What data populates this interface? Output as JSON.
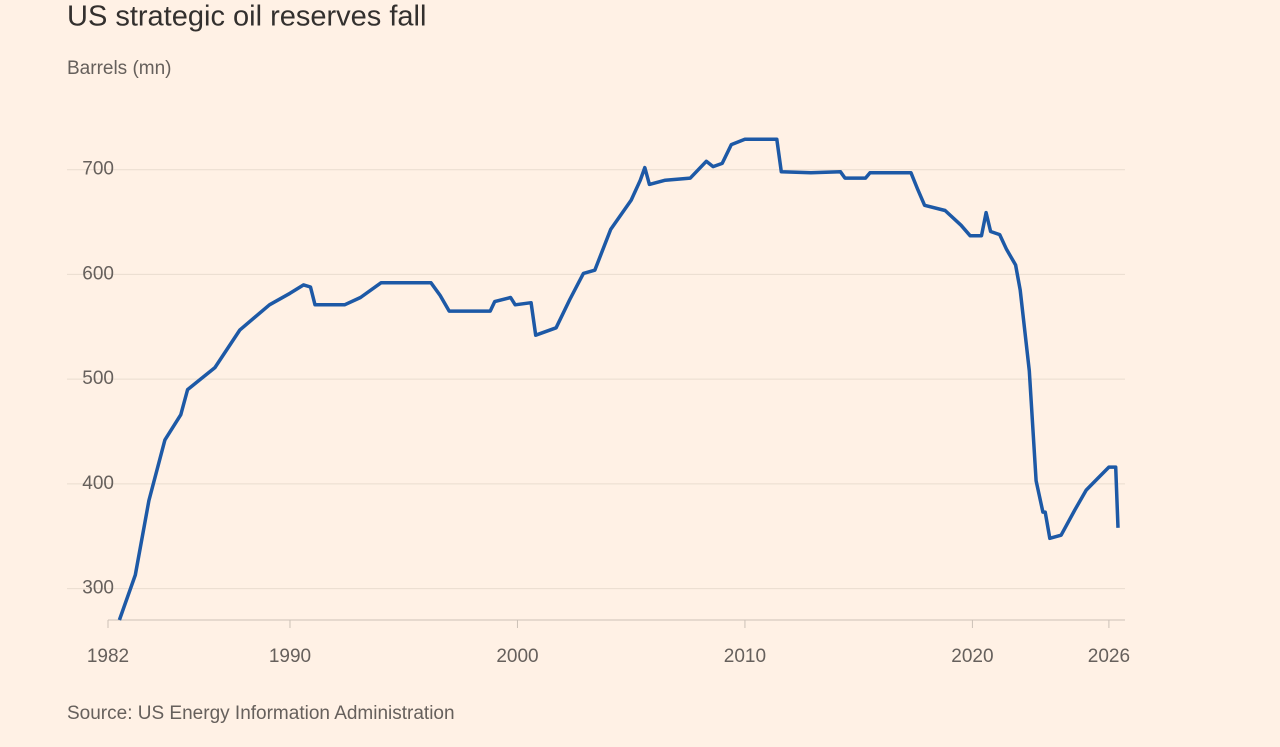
{
  "chart_data": {
    "type": "line",
    "title": "US strategic oil reserves fall",
    "subtitle": "Barrels (mn)",
    "source": "Source: US Energy Information Administration",
    "color": "#1d59a6",
    "x": [
      1982.5,
      1983.2,
      1983.8,
      1984.5,
      1985.2,
      1985.5,
      1986.7,
      1987.8,
      1989.1,
      1990,
      1990.6,
      1990.9,
      1991.1,
      1992.4,
      1993.1,
      1994,
      1996.2,
      1996.6,
      1997,
      1998.8,
      1999,
      1999.7,
      1999.9,
      2000.6,
      2000.8,
      2001.7,
      2002.3,
      2002.9,
      2003.4,
      2004.1,
      2005,
      2005.4,
      2005.6,
      2005.8,
      2006.5,
      2007.6,
      2008.3,
      2008.6,
      2009,
      2009.4,
      2010,
      2011.4,
      2011.6,
      2012.9,
      2014.2,
      2014.4,
      2015.3,
      2015.5,
      2017.3,
      2017.6,
      2017.9,
      2018.8,
      2019.5,
      2019.9,
      2020.4,
      2020.6,
      2020.8,
      2021.2,
      2021.5,
      2021.9,
      2022.1,
      2022.5,
      2022.8,
      2023.1,
      2023.2,
      2023.4,
      2023.9,
      2024.5,
      2025,
      2025.5,
      2026,
      2026.3,
      2026.4
    ],
    "values": [
      270,
      313,
      384,
      442,
      466,
      490,
      511,
      547,
      571,
      582,
      590,
      588,
      571,
      571,
      578,
      592,
      592,
      580,
      565,
      565,
      574,
      578,
      571,
      573,
      542,
      549,
      576,
      601,
      604,
      643,
      671,
      690,
      702,
      686,
      690,
      692,
      708,
      703,
      706,
      724,
      729,
      729,
      698,
      697,
      698,
      692,
      692,
      697,
      697,
      681,
      666,
      661,
      647,
      637,
      637,
      659,
      641,
      638,
      624,
      609,
      585,
      508,
      403,
      373,
      373,
      348,
      351,
      375,
      394,
      405,
      416,
      416,
      358
    ],
    "xlim": [
      1982,
      2026.4
    ],
    "xticks": [
      1982,
      1990,
      2000,
      2010,
      2020,
      2026
    ],
    "ylim": [
      270,
      757
    ],
    "yticks": [
      300,
      400,
      500,
      600,
      700
    ],
    "grid": true
  }
}
